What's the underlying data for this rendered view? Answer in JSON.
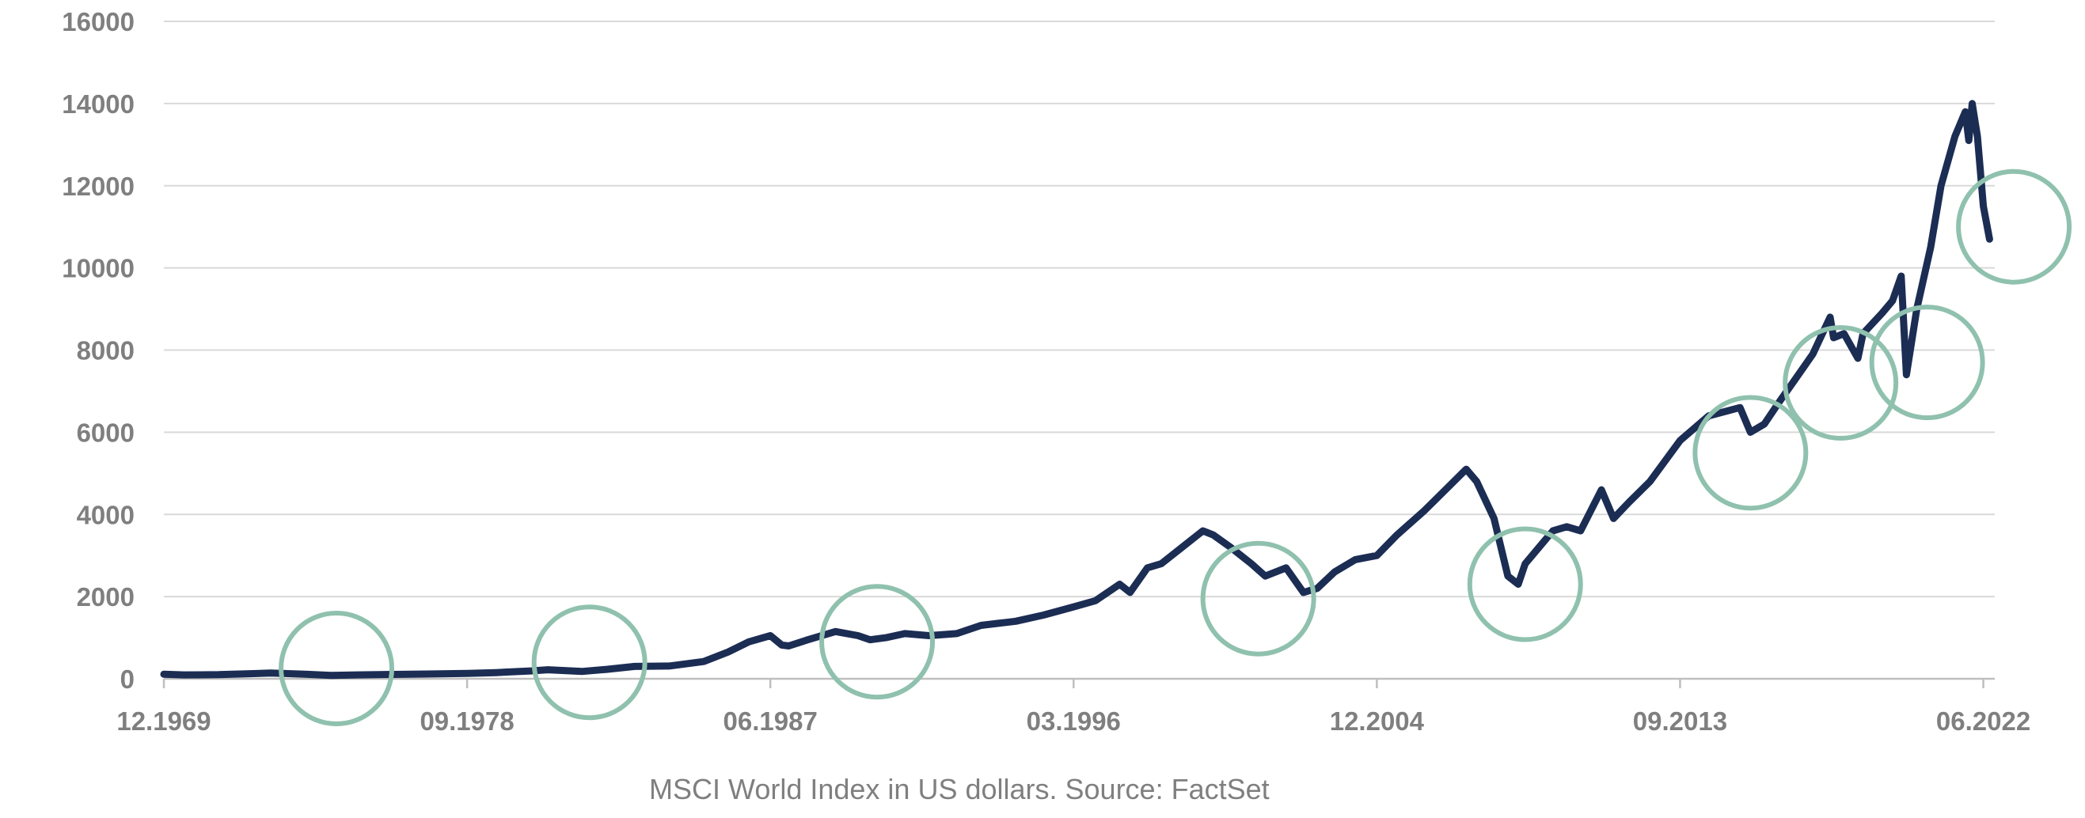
{
  "chart_data": {
    "type": "line",
    "title": "",
    "xlabel": "",
    "ylabel": "",
    "ylim": [
      0,
      16000
    ],
    "yticks": [
      0,
      2000,
      4000,
      6000,
      8000,
      10000,
      12000,
      14000,
      16000
    ],
    "x_tick_labels": [
      "12.1969",
      "09.1978",
      "06.1987",
      "03.1996",
      "12.2004",
      "09.2013",
      "06.2022"
    ],
    "x_tick_dates": [
      1969.92,
      1978.67,
      1987.42,
      1996.17,
      2004.92,
      2013.67,
      2022.42
    ],
    "xlim": [
      1969.92,
      2022.75
    ],
    "grid": "horizontal",
    "legend": "none",
    "series_color": "#1c2d54",
    "series": [
      {
        "x": [
          1969.92,
          1970.5,
          1971.5,
          1972.5,
          1973.0,
          1974.0,
          1974.75,
          1975.5,
          1976.5,
          1977.5,
          1978.67,
          1979.5,
          1980.5,
          1981.0,
          1982.0,
          1982.7,
          1983.5,
          1984.5,
          1985.5,
          1986.2,
          1986.8,
          1987.42,
          1987.75,
          1987.95,
          1988.5,
          1989.3,
          1989.95,
          1990.3,
          1990.75,
          1991.3,
          1992.0,
          1992.8,
          1993.5,
          1994.0,
          1994.5,
          1995.3,
          1996.17,
          1996.8,
          1997.5,
          1997.8,
          1998.3,
          1998.7,
          1999.3,
          1999.9,
          2000.2,
          2000.7,
          2001.3,
          2001.7,
          2002.3,
          2002.8,
          2003.2,
          2003.7,
          2004.3,
          2004.92,
          2005.5,
          2006.3,
          2006.9,
          2007.5,
          2007.8,
          2008.3,
          2008.7,
          2009.0,
          2009.2,
          2009.6,
          2010.0,
          2010.4,
          2010.8,
          2011.4,
          2011.75,
          2012.2,
          2012.8,
          2013.67,
          2014.5,
          2015.4,
          2015.7,
          2016.1,
          2016.5,
          2017.0,
          2017.5,
          2018.0,
          2018.1,
          2018.4,
          2018.8,
          2018.95,
          2019.5,
          2019.8,
          2020.05,
          2020.2,
          2020.5,
          2020.9,
          2021.2,
          2021.6,
          2021.9,
          2022.0,
          2022.1,
          2022.25,
          2022.42,
          2022.6
        ],
        "values": [
          110,
          95,
          100,
          125,
          140,
          110,
          80,
          95,
          105,
          115,
          130,
          150,
          190,
          220,
          180,
          230,
          300,
          310,
          420,
          650,
          900,
          1050,
          820,
          800,
          950,
          1150,
          1050,
          950,
          1000,
          1100,
          1050,
          1100,
          1300,
          1350,
          1400,
          1550,
          1750,
          1900,
          2300,
          2100,
          2700,
          2800,
          3200,
          3600,
          3500,
          3200,
          2800,
          2500,
          2700,
          2100,
          2200,
          2600,
          2900,
          3000,
          3500,
          4100,
          4600,
          5100,
          4800,
          3900,
          2500,
          2300,
          2800,
          3200,
          3600,
          3700,
          3600,
          4600,
          3900,
          4300,
          4800,
          5800,
          6400,
          6600,
          6000,
          6200,
          6700,
          7300,
          7900,
          8800,
          8300,
          8400,
          7800,
          8400,
          8900,
          9200,
          9800,
          7400,
          9000,
          10500,
          12000,
          13200,
          13800,
          13100,
          14000,
          13200,
          11500,
          10700
        ]
      }
    ],
    "highlight_color": "#8fc1ae",
    "highlights": [
      {
        "x": 1974.9,
        "y": 250
      },
      {
        "x": 1982.2,
        "y": 400
      },
      {
        "x": 1990.5,
        "y": 900
      },
      {
        "x": 2001.5,
        "y": 1950
      },
      {
        "x": 2009.2,
        "y": 2300
      },
      {
        "x": 2015.7,
        "y": 5500
      },
      {
        "x": 2018.3,
        "y": 7200
      },
      {
        "x": 2020.8,
        "y": 7700
      },
      {
        "x": 2023.3,
        "y": 11000
      }
    ]
  },
  "source_note": "MSCI World Index in US dollars. Source: FactSet"
}
